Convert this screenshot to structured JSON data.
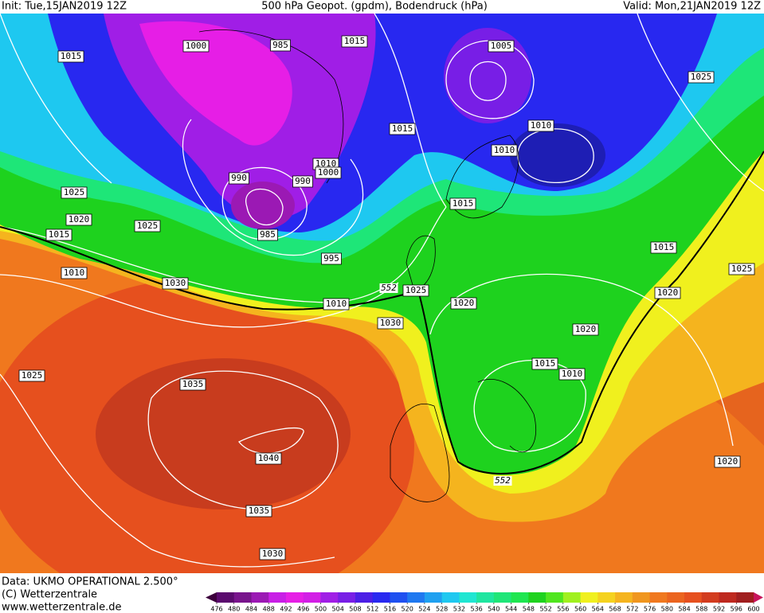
{
  "header": {
    "init": "Init: Tue,15JAN2019 12Z",
    "title": "500 hPa Geopot. (gpdm), Bodendruck (hPa)",
    "valid": "Valid: Mon,21JAN2019 12Z"
  },
  "isobar_labels": [
    "1000",
    "985",
    "1015",
    "1005",
    "1015",
    "1025",
    "1015",
    "1010",
    "1010",
    "1010",
    "1000",
    "990",
    "990",
    "1025",
    "1020",
    "1025",
    "1015",
    "1015",
    "985",
    "995",
    "1015",
    "1010",
    "1025",
    "1030",
    "1025",
    "1020",
    "1020",
    "1010",
    "1030",
    "1020",
    "1015",
    "1010",
    "1025",
    "1035",
    "1040",
    "1020",
    "1035",
    "1030"
  ],
  "height_labels": [
    "552",
    "552"
  ],
  "colorbar": {
    "ticks": [
      476,
      480,
      484,
      488,
      492,
      496,
      500,
      504,
      508,
      512,
      516,
      520,
      524,
      528,
      532,
      536,
      540,
      544,
      548,
      552,
      556,
      560,
      564,
      568,
      572,
      576,
      580,
      584,
      588,
      592,
      596,
      600
    ],
    "colors": [
      "#3c003c",
      "#5a0a6e",
      "#78148c",
      "#9b19b4",
      "#c81ee6",
      "#e61ee6",
      "#d21ee6",
      "#a01ee6",
      "#781ee6",
      "#4b1ee6",
      "#2828f0",
      "#1e50f0",
      "#1e78f0",
      "#1ea0f0",
      "#1ec8f0",
      "#1ee6d2",
      "#1ee6a0",
      "#1ee678",
      "#1ee650",
      "#1ed21e",
      "#50e61e",
      "#a0f01e",
      "#f0f01e",
      "#f5d21e",
      "#f5b41e",
      "#f0961e",
      "#f0781e",
      "#eb641e",
      "#e6501e",
      "#d23c1e",
      "#be281e",
      "#a01e1e",
      "#c8145a"
    ]
  },
  "footer": {
    "data": "Data: UKMO OPERATIONAL 2.500°",
    "copyright": "(C) Wetterzentrale",
    "url": "www.wetterzentrale.de"
  }
}
